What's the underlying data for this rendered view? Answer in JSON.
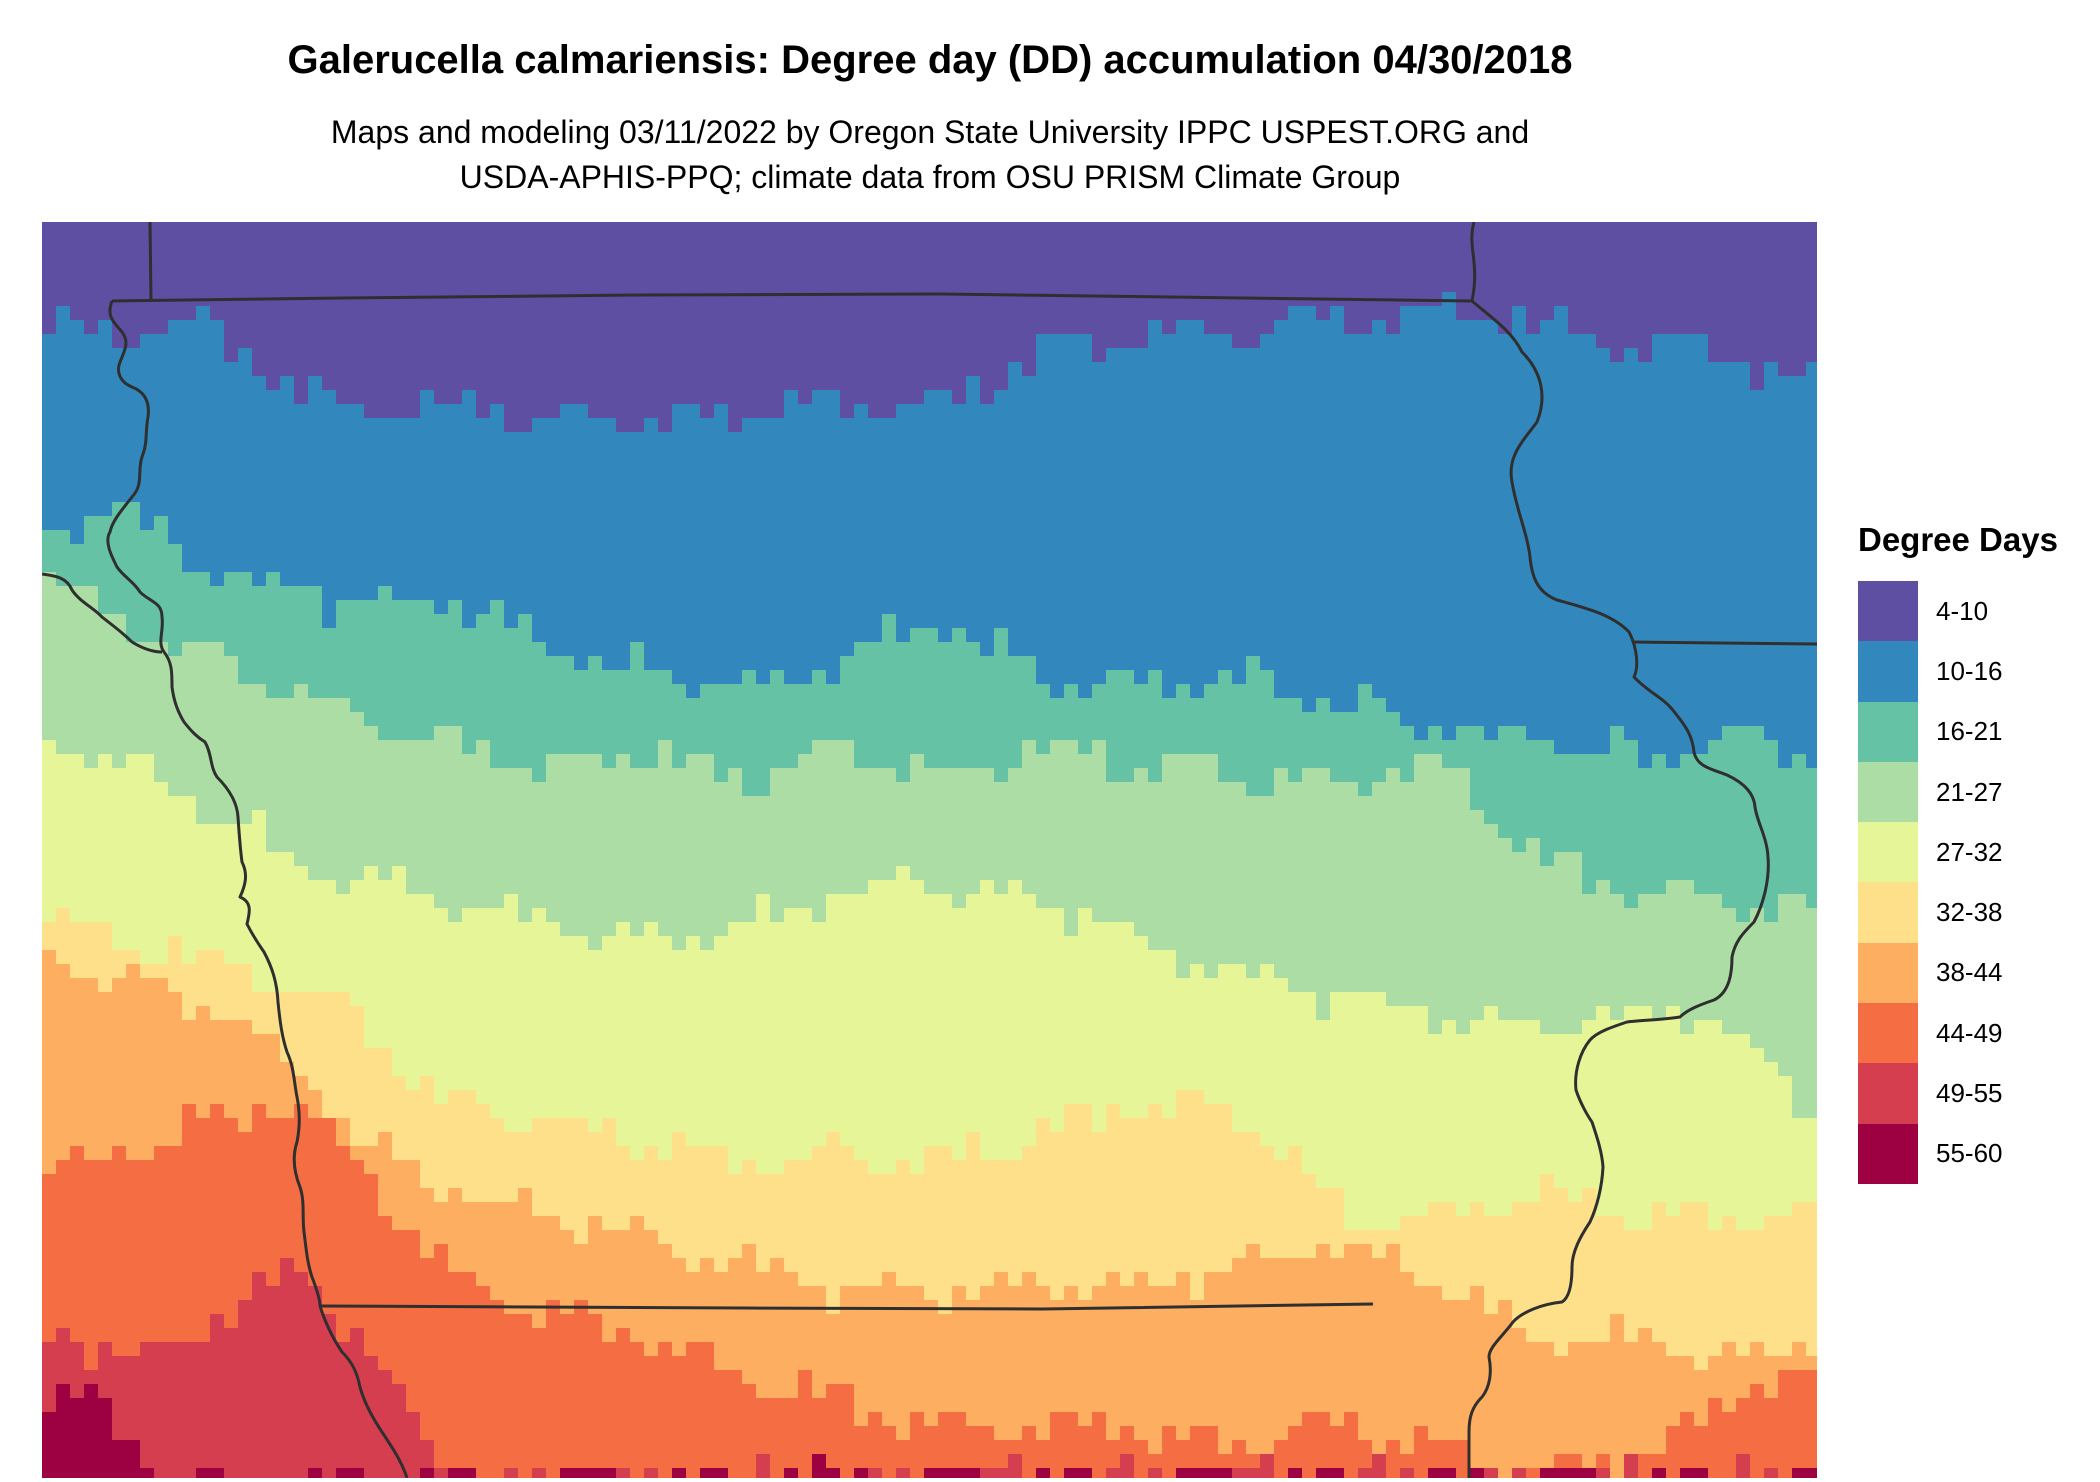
{
  "title": "Galerucella calmariensis: Degree day (DD) accumulation 04/30/2018",
  "subtitle": {
    "line1": "Maps and modeling 03/11/2022 by Oregon State University IPPC USPEST.ORG and",
    "line2": "USDA-APHIS-PPQ; climate data from OSU PRISM Climate Group"
  },
  "legend": {
    "title": "Degree Days",
    "entries": [
      {
        "label": "4-10",
        "color": "#5E4FA2"
      },
      {
        "label": "10-16",
        "color": "#3288BD"
      },
      {
        "label": "16-21",
        "color": "#66C2A5"
      },
      {
        "label": "21-27",
        "color": "#ABDDA4"
      },
      {
        "label": "27-32",
        "color": "#E6F598"
      },
      {
        "label": "32-38",
        "color": "#FEE08B"
      },
      {
        "label": "38-44",
        "color": "#FDAE61"
      },
      {
        "label": "44-49",
        "color": "#F46D43"
      },
      {
        "label": "49-55",
        "color": "#D53E4F"
      },
      {
        "label": "55-60",
        "color": "#9E0142"
      }
    ]
  }
}
